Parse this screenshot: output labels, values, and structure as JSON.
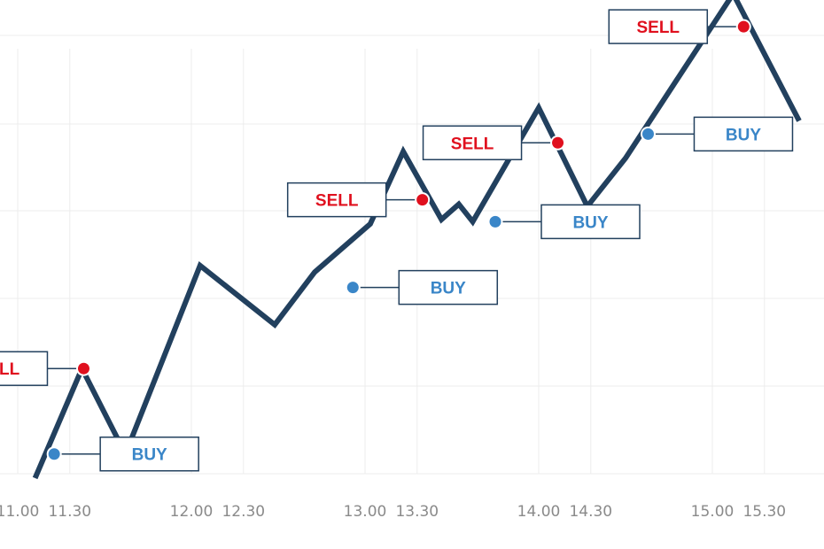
{
  "colors": {
    "line": "#22405e",
    "grid": "#ececec",
    "tick_text": "#8a8a8a",
    "buy": "#3a86c8",
    "sell": "#e0101e",
    "box_border": "#22405e"
  },
  "chart_data": {
    "type": "line",
    "title": "",
    "xlabel": "",
    "ylabel": "",
    "grid": true,
    "x_ticks": [
      "11.00",
      "11.30",
      "12.00",
      "12.30",
      "13.00",
      "13.30",
      "14.00",
      "14.30",
      "15.00",
      "15.30"
    ],
    "xlim": [
      11.0,
      15.5
    ],
    "ylim": [
      0,
      100
    ],
    "series": [
      {
        "x": [
          11.1,
          11.37,
          11.62,
          12.05,
          12.48,
          12.71,
          13.03,
          13.22,
          13.44,
          13.54,
          13.62,
          14.0,
          14.28,
          14.5,
          15.12,
          15.5
        ],
        "y": [
          -1,
          24,
          4.5,
          47.5,
          34,
          46,
          57,
          73.5,
          58,
          61.5,
          57.5,
          83.5,
          61,
          72,
          109.5,
          80.5
        ]
      }
    ],
    "signals": [
      {
        "type": "BUY",
        "label": "BUY",
        "x": 11.21,
        "y": 4.5
      },
      {
        "type": "SELL",
        "label": "SELL",
        "x": 11.38,
        "y": 24
      },
      {
        "type": "BUY",
        "label": "BUY",
        "x": 12.93,
        "y": 42.5
      },
      {
        "type": "SELL",
        "label": "SELL",
        "x": 13.33,
        "y": 62.5
      },
      {
        "type": "BUY",
        "label": "BUY",
        "x": 13.75,
        "y": 57.5
      },
      {
        "type": "SELL",
        "label": "SELL",
        "x": 14.11,
        "y": 75.5
      },
      {
        "type": "BUY",
        "label": "BUY",
        "x": 14.63,
        "y": 77.5
      },
      {
        "type": "SELL",
        "label": "SELL",
        "x": 15.18,
        "y": 102
      }
    ]
  }
}
